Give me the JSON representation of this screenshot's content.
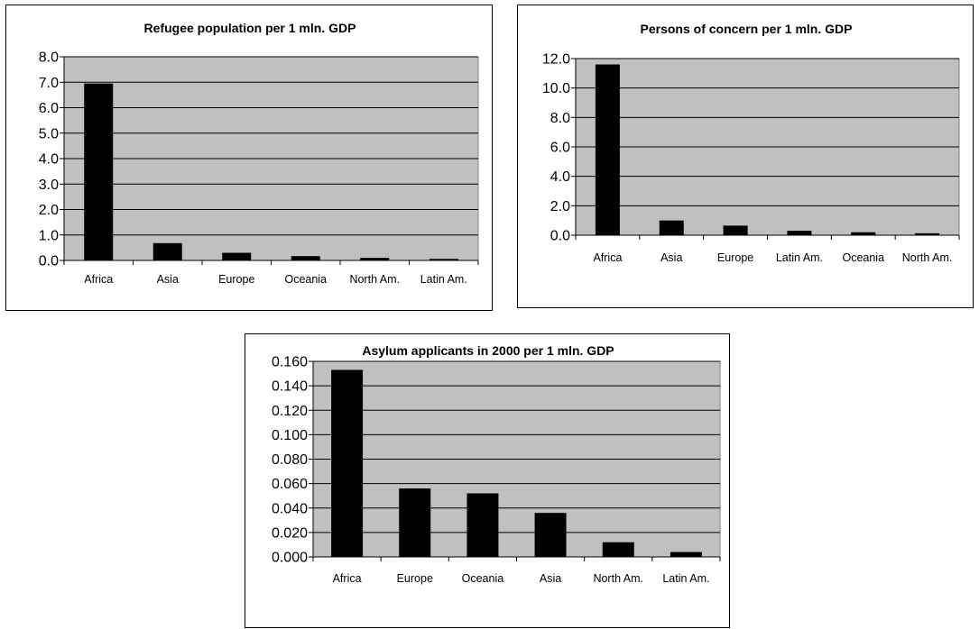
{
  "chart_data": [
    {
      "type": "bar",
      "title": "Refugee population per 1 mln. GDP",
      "categories": [
        "Africa",
        "Asia",
        "Europe",
        "Oceania",
        "North Am.",
        "Latin Am."
      ],
      "values": [
        6.95,
        0.68,
        0.3,
        0.17,
        0.1,
        0.06
      ],
      "ylim": [
        0,
        8
      ],
      "yticks": [
        "0.0",
        "1.0",
        "2.0",
        "3.0",
        "4.0",
        "5.0",
        "6.0",
        "7.0",
        "8.0"
      ],
      "grid": true,
      "legend": "none",
      "colors": {
        "bar": "#000000",
        "plot_bg": "#c0c0c0",
        "grid": "#000000"
      }
    },
    {
      "type": "bar",
      "title": "Persons of concern per 1 mln. GDP",
      "categories": [
        "Africa",
        "Asia",
        "Europe",
        "Latin Am.",
        "Oceania",
        "North Am."
      ],
      "values": [
        11.6,
        1.0,
        0.65,
        0.3,
        0.2,
        0.13
      ],
      "ylim": [
        0,
        12
      ],
      "yticks": [
        "0.0",
        "2.0",
        "4.0",
        "6.0",
        "8.0",
        "10.0",
        "12.0"
      ],
      "grid": true,
      "legend": "none",
      "colors": {
        "bar": "#000000",
        "plot_bg": "#c0c0c0",
        "grid": "#000000"
      }
    },
    {
      "type": "bar",
      "title": "Asylum applicants in 2000 per 1 mln. GDP",
      "categories": [
        "Africa",
        "Europe",
        "Oceania",
        "Asia",
        "North Am.",
        "Latin Am."
      ],
      "values": [
        0.153,
        0.056,
        0.052,
        0.036,
        0.012,
        0.004
      ],
      "ylim": [
        0,
        0.16
      ],
      "yticks": [
        "0.000",
        "0.020",
        "0.040",
        "0.060",
        "0.080",
        "0.100",
        "0.120",
        "0.140",
        "0.160"
      ],
      "grid": true,
      "legend": "none",
      "colors": {
        "bar": "#000000",
        "plot_bg": "#c0c0c0",
        "grid": "#000000"
      }
    }
  ]
}
